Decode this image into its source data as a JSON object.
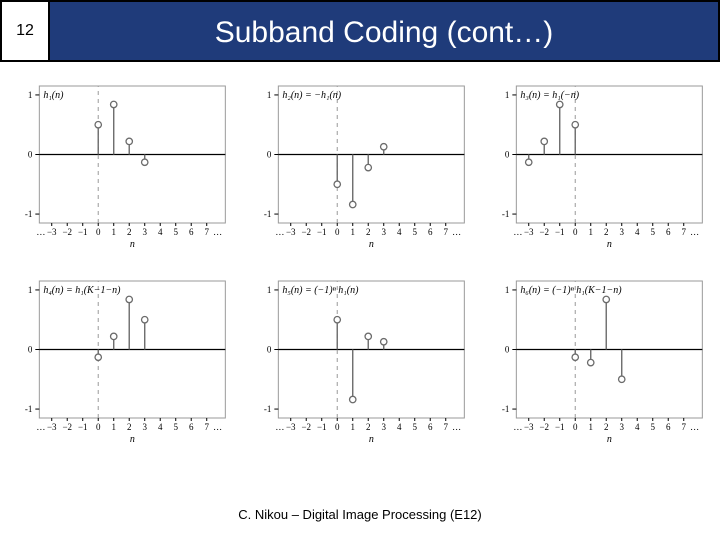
{
  "header": {
    "page_number": "12",
    "title": "Subband Coding (cont…)",
    "bg_color": "#1f3b7a",
    "title_color": "#ffffff",
    "border_color": "#000000"
  },
  "footer": {
    "text": "C. Nikou – Digital Image Processing (E12)"
  },
  "plot_common": {
    "xlim": [
      -3.8,
      8.2
    ],
    "ylim": [
      -1.15,
      1.15
    ],
    "yticks": [
      -1,
      0,
      1
    ],
    "xticks": [
      -3,
      -2,
      -1,
      0,
      1,
      2,
      3,
      4,
      5,
      6,
      7
    ],
    "xlabel": "n",
    "axis_color": "#000000",
    "frame_color": "#9a9a9a",
    "dash_color": "#9a9a9a",
    "marker_stroke": "#6b6b6b",
    "marker_fill": "#ffffff",
    "marker_radius": 3.2,
    "stem_color": "#6b6b6b",
    "stem_width": 1.4,
    "font_size": 9,
    "label_font_size": 10,
    "ellipsis": "…"
  },
  "plots": [
    {
      "title": "h₁(n)",
      "n0": 0,
      "values": [
        0.5,
        0.84,
        0.22,
        -0.13
      ],
      "dash_ref_at": "n0"
    },
    {
      "title": "h₂(n) = −h₁(n)",
      "n0": 0,
      "values": [
        -0.5,
        -0.84,
        -0.22,
        0.13
      ],
      "dash_ref_at": "n0"
    },
    {
      "title": "h₃(n) = h₁(−n)",
      "n0": -3,
      "values": [
        -0.13,
        0.22,
        0.84,
        0.5
      ],
      "dash_ref_at": "zero"
    },
    {
      "title": "h₄(n) = h₁(K−1−n)",
      "n0": 0,
      "values": [
        -0.13,
        0.22,
        0.84,
        0.5
      ],
      "dash_ref_at": "n0"
    },
    {
      "title": "h₅(n) = (−1)ⁿ h₁(n)",
      "n0": 0,
      "values": [
        0.5,
        -0.84,
        0.22,
        0.13
      ],
      "dash_ref_at": "n0"
    },
    {
      "title": "h₆(n) = (−1)ⁿ h₁(K−1−n)",
      "n0": 0,
      "values": [
        -0.13,
        -0.22,
        0.84,
        -0.5
      ],
      "dash_ref_at": "n0"
    }
  ]
}
